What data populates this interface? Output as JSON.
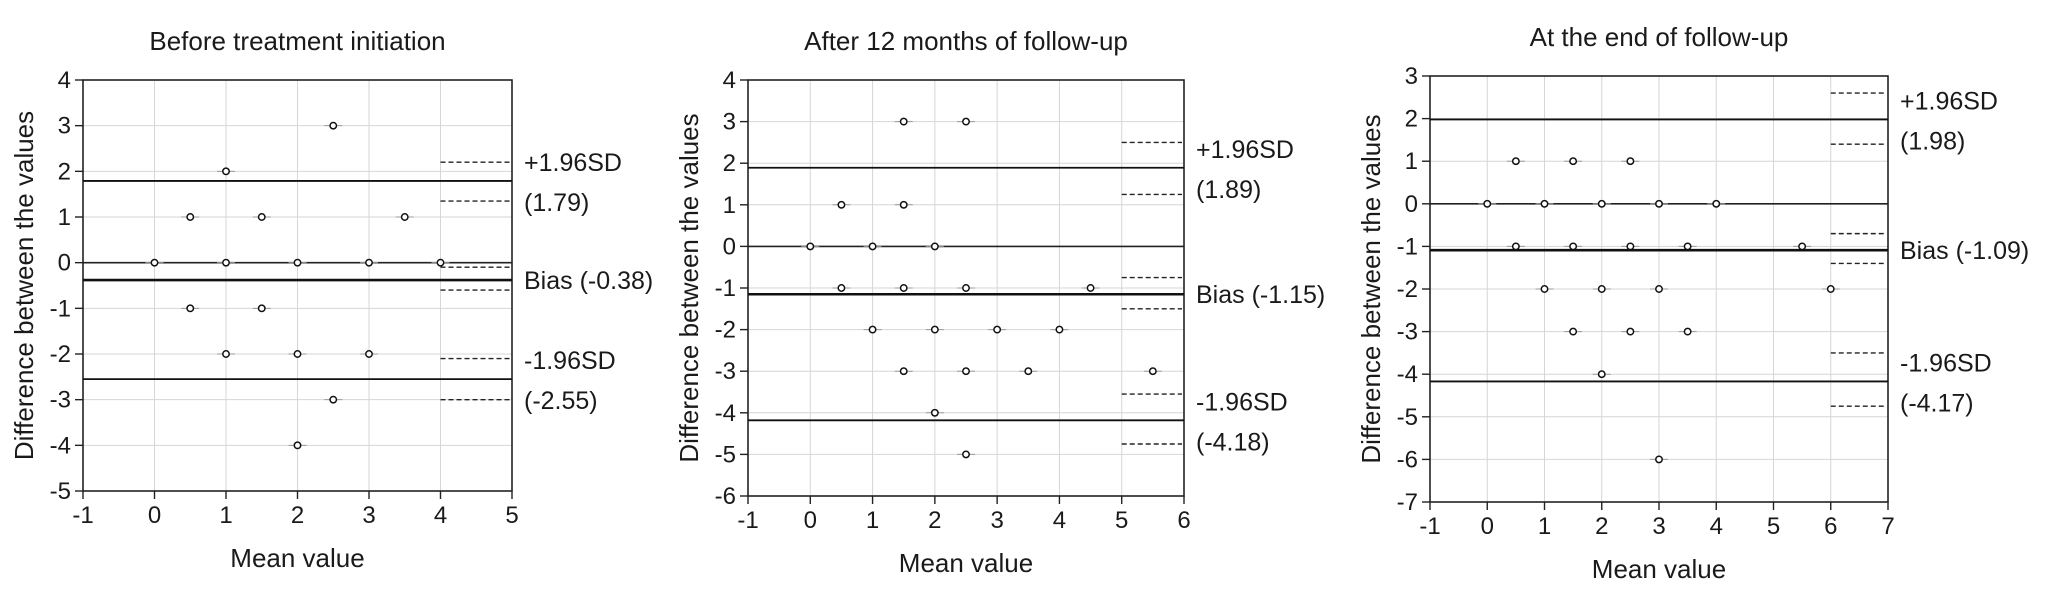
{
  "chart_data": [
    {
      "type": "scatter",
      "title": "Before treatment initiation",
      "xlabel": "Mean value",
      "ylabel": "Difference between the values",
      "xlim": [
        -1,
        5
      ],
      "ylim": [
        -5,
        4
      ],
      "x_ticks": [
        "-1",
        "0",
        "1",
        "2",
        "3",
        "4",
        "5"
      ],
      "y_ticks": [
        "-5",
        "-4",
        "-3",
        "-2",
        "-1",
        "0",
        "1",
        "2",
        "3",
        "4"
      ],
      "grid": true,
      "lines": [
        {
          "name": "+1.96SD",
          "value": 1.79,
          "label_top": "+1.96SD",
          "label_bottom": "(1.79)"
        },
        {
          "name": "Bias",
          "value": -0.38,
          "label_top": "Bias (-0.38)",
          "label_bottom": ""
        },
        {
          "name": "-1.96SD",
          "value": -2.55,
          "label_top": "-1.96SD",
          "label_bottom": "(-2.55)"
        }
      ],
      "points": [
        {
          "x": 2.5,
          "y": 3
        },
        {
          "x": 1,
          "y": 2
        },
        {
          "x": 0.5,
          "y": 1
        },
        {
          "x": 1.5,
          "y": 1
        },
        {
          "x": 3.5,
          "y": 1
        },
        {
          "x": 0,
          "y": 0
        },
        {
          "x": 1,
          "y": 0
        },
        {
          "x": 2,
          "y": 0
        },
        {
          "x": 3,
          "y": 0
        },
        {
          "x": 4,
          "y": 0
        },
        {
          "x": 0.5,
          "y": -1
        },
        {
          "x": 1.5,
          "y": -1
        },
        {
          "x": 1,
          "y": -2
        },
        {
          "x": 2,
          "y": -2
        },
        {
          "x": 3,
          "y": -2
        },
        {
          "x": 2.5,
          "y": -3
        },
        {
          "x": 2,
          "y": -4
        }
      ]
    },
    {
      "type": "scatter",
      "title": "After 12 months of follow-up",
      "xlabel": "Mean value",
      "ylabel": "Difference between the values",
      "xlim": [
        -1,
        6
      ],
      "ylim": [
        -6,
        4
      ],
      "x_ticks": [
        "-1",
        "0",
        "1",
        "2",
        "3",
        "4",
        "5",
        "6"
      ],
      "y_ticks": [
        "-6",
        "-5",
        "-4",
        "-3",
        "-2",
        "-1",
        "0",
        "1",
        "2",
        "3",
        "4"
      ],
      "grid": true,
      "lines": [
        {
          "name": "+1.96SD",
          "value": 1.89,
          "label_top": "+1.96SD",
          "label_bottom": "(1.89)"
        },
        {
          "name": "Bias",
          "value": -1.15,
          "label_top": "Bias (-1.15)",
          "label_bottom": ""
        },
        {
          "name": "-1.96SD",
          "value": -4.18,
          "label_top": "-1.96SD",
          "label_bottom": "(-4.18)"
        }
      ],
      "points": [
        {
          "x": 1.5,
          "y": 3
        },
        {
          "x": 2.5,
          "y": 3
        },
        {
          "x": 0.5,
          "y": 1
        },
        {
          "x": 1.5,
          "y": 1
        },
        {
          "x": 0,
          "y": 0
        },
        {
          "x": 1,
          "y": 0
        },
        {
          "x": 2,
          "y": 0
        },
        {
          "x": 0.5,
          "y": -1
        },
        {
          "x": 1.5,
          "y": -1
        },
        {
          "x": 2.5,
          "y": -1
        },
        {
          "x": 4.5,
          "y": -1
        },
        {
          "x": 1,
          "y": -2
        },
        {
          "x": 2,
          "y": -2
        },
        {
          "x": 3,
          "y": -2
        },
        {
          "x": 4,
          "y": -2
        },
        {
          "x": 1.5,
          "y": -3
        },
        {
          "x": 2.5,
          "y": -3
        },
        {
          "x": 3.5,
          "y": -3
        },
        {
          "x": 5.5,
          "y": -3
        },
        {
          "x": 2,
          "y": -4
        },
        {
          "x": 2.5,
          "y": -5
        }
      ]
    },
    {
      "type": "scatter",
      "title": "At the end of follow-up",
      "xlabel": "Mean value",
      "ylabel": "Difference between the values",
      "xlim": [
        -1,
        7
      ],
      "ylim": [
        -7,
        3
      ],
      "x_ticks": [
        "-1",
        "0",
        "1",
        "2",
        "3",
        "4",
        "5",
        "6",
        "7"
      ],
      "y_ticks": [
        "-7",
        "-6",
        "-5",
        "-4",
        "-3",
        "-2",
        "-1",
        "0",
        "1",
        "2",
        "3"
      ],
      "grid": true,
      "lines": [
        {
          "name": "+1.96SD",
          "value": 1.98,
          "label_top": "+1.96SD",
          "label_bottom": "(1.98)"
        },
        {
          "name": "Bias",
          "value": -1.09,
          "label_top": "Bias (-1.09)",
          "label_bottom": ""
        },
        {
          "name": "-1.96SD",
          "value": -4.17,
          "label_top": "-1.96SD",
          "label_bottom": "(-4.17)"
        }
      ],
      "points": [
        {
          "x": 0.5,
          "y": 1
        },
        {
          "x": 1.5,
          "y": 1
        },
        {
          "x": 2.5,
          "y": 1
        },
        {
          "x": 0,
          "y": 0
        },
        {
          "x": 1,
          "y": 0
        },
        {
          "x": 2,
          "y": 0
        },
        {
          "x": 3,
          "y": 0
        },
        {
          "x": 4,
          "y": 0
        },
        {
          "x": 0.5,
          "y": -1
        },
        {
          "x": 1.5,
          "y": -1
        },
        {
          "x": 2.5,
          "y": -1
        },
        {
          "x": 3.5,
          "y": -1
        },
        {
          "x": 5.5,
          "y": -1
        },
        {
          "x": 1,
          "y": -2
        },
        {
          "x": 2,
          "y": -2
        },
        {
          "x": 3,
          "y": -2
        },
        {
          "x": 6,
          "y": -2
        },
        {
          "x": 1.5,
          "y": -3
        },
        {
          "x": 2.5,
          "y": -3
        },
        {
          "x": 3.5,
          "y": -3
        },
        {
          "x": 2,
          "y": -4
        },
        {
          "x": 3,
          "y": -6
        }
      ]
    }
  ]
}
